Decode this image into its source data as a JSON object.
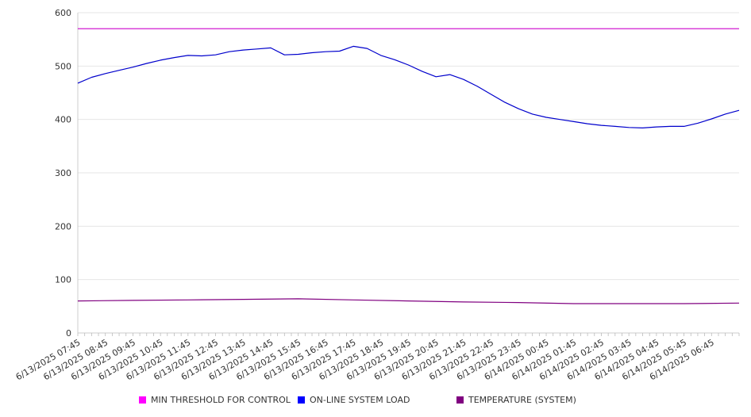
{
  "chart_data": {
    "type": "line",
    "title": "",
    "xlabel": "",
    "ylabel": "",
    "ylim": [
      0,
      600
    ],
    "y_ticks": [
      "0",
      "100",
      "200",
      "300",
      "400",
      "500",
      "600"
    ],
    "grid": "horizontal",
    "legend_position": "bottom",
    "x_tick_labels": [
      "6/13/2025 07:45",
      "6/13/2025 08:45",
      "6/13/2025 09:45",
      "6/13/2025 10:45",
      "6/13/2025 11:45",
      "6/13/2025 12:45",
      "6/13/2025 13:45",
      "6/13/2025 14:45",
      "6/13/2025 15:45",
      "6/13/2025 16:45",
      "6/13/2025 17:45",
      "6/13/2025 18:45",
      "6/13/2025 19:45",
      "6/13/2025 20:45",
      "6/13/2025 21:45",
      "6/13/2025 22:45",
      "6/13/2025 23:45",
      "6/14/2025 00:45",
      "6/14/2025 01:45",
      "6/14/2025 02:45",
      "6/14/2025 03:45",
      "6/14/2025 04:45",
      "6/14/2025 05:45",
      "6/14/2025 06:45"
    ],
    "x_start": "6/13/2025 07:45",
    "x_end": "6/14/2025 07:45",
    "series": [
      {
        "name": "MIN THRESHOLD FOR CONTROL",
        "color": "#cc00cc",
        "x": [
          "6/13/2025 07:45",
          "6/14/2025 07:45"
        ],
        "values": [
          570,
          570
        ]
      },
      {
        "name": "ON-LINE SYSTEM LOAD",
        "color": "#0000cc",
        "x": [
          "6/13/2025 07:45",
          "6/13/2025 08:15",
          "6/13/2025 08:45",
          "6/13/2025 09:15",
          "6/13/2025 09:45",
          "6/13/2025 10:15",
          "6/13/2025 10:45",
          "6/13/2025 11:15",
          "6/13/2025 11:45",
          "6/13/2025 12:15",
          "6/13/2025 12:45",
          "6/13/2025 13:15",
          "6/13/2025 13:45",
          "6/13/2025 14:15",
          "6/13/2025 14:45",
          "6/13/2025 15:15",
          "6/13/2025 15:45",
          "6/13/2025 16:15",
          "6/13/2025 16:45",
          "6/13/2025 17:15",
          "6/13/2025 17:45",
          "6/13/2025 18:15",
          "6/13/2025 18:45",
          "6/13/2025 19:15",
          "6/13/2025 19:45",
          "6/13/2025 20:15",
          "6/13/2025 20:45",
          "6/13/2025 21:15",
          "6/13/2025 21:45",
          "6/13/2025 22:15",
          "6/13/2025 22:45",
          "6/13/2025 23:15",
          "6/13/2025 23:45",
          "6/14/2025 00:15",
          "6/14/2025 00:45",
          "6/14/2025 01:15",
          "6/14/2025 01:45",
          "6/14/2025 02:15",
          "6/14/2025 02:45",
          "6/14/2025 03:15",
          "6/14/2025 03:45",
          "6/14/2025 04:15",
          "6/14/2025 04:45",
          "6/14/2025 05:15",
          "6/14/2025 05:45",
          "6/14/2025 06:15",
          "6/14/2025 06:45",
          "6/14/2025 07:15",
          "6/14/2025 07:45"
        ],
        "values": [
          468,
          479,
          486,
          492,
          498,
          505,
          511,
          516,
          520,
          519,
          521,
          527,
          530,
          532,
          534,
          521,
          522,
          525,
          527,
          528,
          537,
          533,
          520,
          512,
          502,
          490,
          480,
          484,
          475,
          462,
          447,
          432,
          420,
          410,
          404,
          400,
          396,
          392,
          389,
          387,
          385,
          384,
          386,
          387,
          387,
          393,
          401,
          410,
          417
        ]
      },
      {
        "name": "TEMPERATURE (SYSTEM)",
        "color": "#800080",
        "x": [
          "6/13/2025 07:45",
          "6/13/2025 09:45",
          "6/13/2025 11:45",
          "6/13/2025 13:45",
          "6/13/2025 15:45",
          "6/13/2025 17:45",
          "6/13/2025 19:45",
          "6/13/2025 21:45",
          "6/13/2025 23:45",
          "6/14/2025 01:45",
          "6/14/2025 03:45",
          "6/14/2025 05:45",
          "6/14/2025 07:45"
        ],
        "values": [
          60,
          61,
          62,
          63,
          64,
          62,
          60,
          58,
          57,
          55,
          55,
          55,
          56
        ]
      }
    ]
  }
}
